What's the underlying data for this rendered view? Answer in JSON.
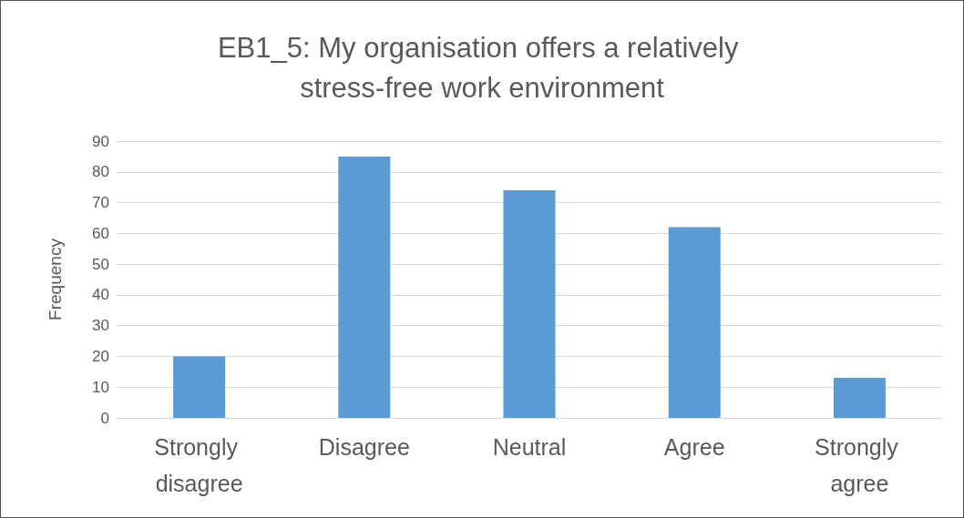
{
  "chart_data": {
    "type": "bar",
    "title": "EB1_5: My organisation offers a relatively stress-free work environment",
    "ylabel": "Frequency",
    "categories": [
      "Strongly disagree",
      "Disagree",
      "Neutral",
      "Agree",
      "Strongly agree"
    ],
    "values": [
      20,
      85,
      74,
      62,
      13
    ],
    "color": "#5b9bd5",
    "ylim": [
      0,
      90
    ],
    "yticks": [
      0,
      10,
      20,
      30,
      40,
      50,
      60,
      70,
      80,
      90
    ],
    "grid": "y"
  }
}
